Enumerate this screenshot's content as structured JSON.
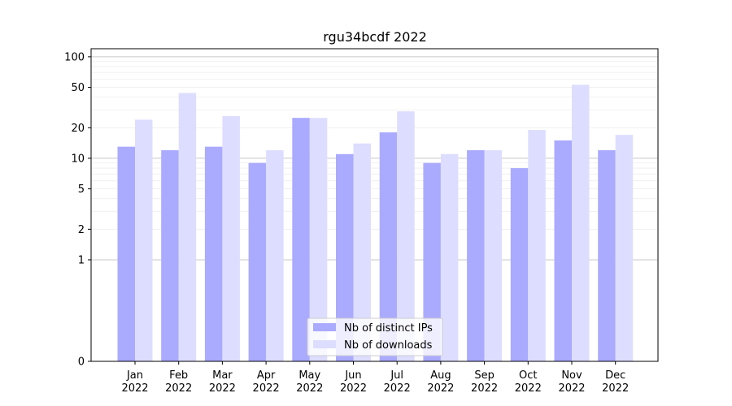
{
  "chart_data": {
    "type": "bar",
    "title": "rgu34bcdf 2022",
    "xlabel": "",
    "ylabel": "",
    "y_scale": "symlog",
    "ylim": [
      0,
      120
    ],
    "y_ticks": [
      0,
      1,
      2,
      5,
      10,
      20,
      50,
      100
    ],
    "y_tick_labels": [
      "0",
      "1",
      "2",
      "5",
      "10",
      "20",
      "50",
      "100"
    ],
    "categories": [
      "Jan",
      "Feb",
      "Mar",
      "Apr",
      "May",
      "Jun",
      "Jul",
      "Aug",
      "Sep",
      "Oct",
      "Nov",
      "Dec"
    ],
    "category_year": "2022",
    "legend_position": "bottom-center",
    "grid": true,
    "series": [
      {
        "name": "Nb of distinct IPs",
        "color": "#aaaaff",
        "values": [
          13,
          12,
          13,
          9,
          25,
          11,
          18,
          9,
          12,
          8,
          15,
          12
        ]
      },
      {
        "name": "Nb of downloads",
        "color": "#ddddff",
        "values": [
          24,
          44,
          26,
          12,
          25,
          14,
          29,
          11,
          12,
          19,
          53,
          17
        ]
      }
    ]
  }
}
